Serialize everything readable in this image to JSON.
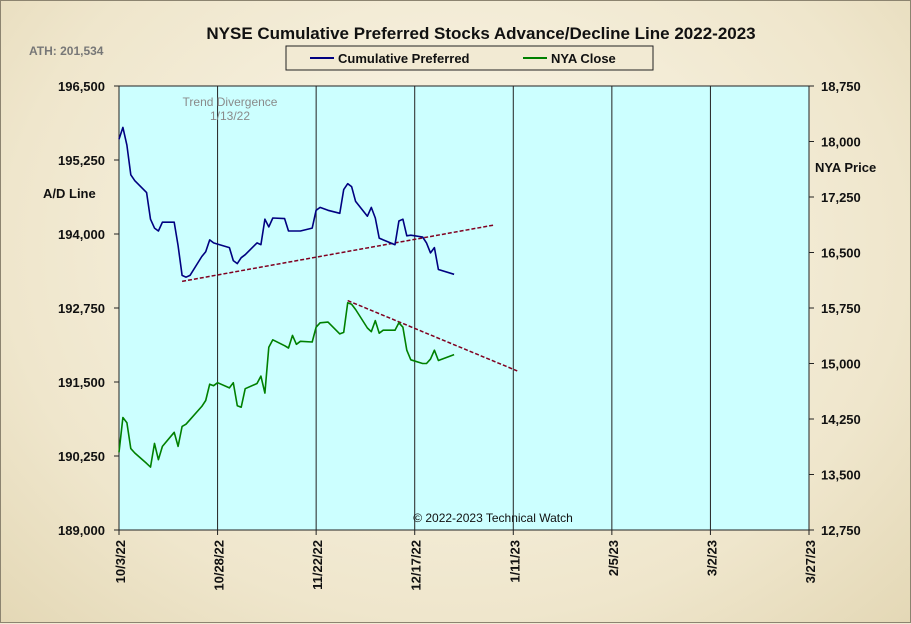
{
  "chart_data": {
    "type": "line",
    "title": "NYSE Cumulative  Preferred Stocks Advance/Decline  Line 2022-2023",
    "ath_label": "ATH: 201,534",
    "left_axis": {
      "label": "A/D Line",
      "range": [
        189000,
        196500
      ],
      "ticks": [
        "196,500",
        "195,250",
        "194,000",
        "192,750",
        "191,500",
        "190,250",
        "189,000"
      ],
      "tick_values": [
        196500,
        195250,
        194000,
        192750,
        191500,
        190250,
        189000
      ]
    },
    "right_axis": {
      "label": "NYA Price",
      "range": [
        12750,
        18750
      ],
      "ticks": [
        "18,750",
        "18,000",
        "17,250",
        "16,500",
        "15,750",
        "15,000",
        "14,250",
        "13,500",
        "12,750"
      ],
      "tick_values": [
        18750,
        18000,
        17250,
        16500,
        15750,
        15000,
        14250,
        13500,
        12750
      ]
    },
    "x_axis": {
      "range": [
        "2022-10-03",
        "2023-03-27"
      ],
      "tick_labels": [
        "10/3/22",
        "10/28/22",
        "11/22/22",
        "12/17/22",
        "1/11/23",
        "2/5/23",
        "3/2/23",
        "3/27/23"
      ],
      "tick_dates": [
        "2022-10-03",
        "2022-10-28",
        "2022-11-22",
        "2022-12-17",
        "2023-01-11",
        "2023-02-05",
        "2023-03-02",
        "2023-03-27"
      ]
    },
    "legend": {
      "position": "top-center",
      "entries": [
        {
          "name": "Cumulative Preferred",
          "color": "#000080"
        },
        {
          "name": "NYA Close",
          "color": "#008000"
        }
      ]
    },
    "annotation": {
      "line1": "Trend  Divergence",
      "line2": "1/13/22"
    },
    "copyright": "© 2022-2023  Technical  Watch",
    "colors": {
      "plot_bg": "#ccffff",
      "ad_line": "#000080",
      "nya_line": "#008000",
      "trendline": "#800020"
    },
    "series": [
      {
        "name": "Cumulative Preferred",
        "axis": "left",
        "color": "#000080",
        "x": [
          "2022-10-03",
          "2022-10-04",
          "2022-10-05",
          "2022-10-06",
          "2022-10-07",
          "2022-10-10",
          "2022-10-11",
          "2022-10-12",
          "2022-10-13",
          "2022-10-14",
          "2022-10-17",
          "2022-10-18",
          "2022-10-19",
          "2022-10-20",
          "2022-10-21",
          "2022-10-24",
          "2022-10-25",
          "2022-10-26",
          "2022-10-27",
          "2022-10-28",
          "2022-10-31",
          "2022-11-01",
          "2022-11-02",
          "2022-11-03",
          "2022-11-04",
          "2022-11-07",
          "2022-11-08",
          "2022-11-09",
          "2022-11-10",
          "2022-11-11",
          "2022-11-14",
          "2022-11-15",
          "2022-11-16",
          "2022-11-17",
          "2022-11-18",
          "2022-11-21",
          "2022-11-22",
          "2022-11-23",
          "2022-11-25",
          "2022-11-28",
          "2022-11-29",
          "2022-11-30",
          "2022-12-01",
          "2022-12-02",
          "2022-12-05",
          "2022-12-06",
          "2022-12-07",
          "2022-12-08",
          "2022-12-09",
          "2022-12-12",
          "2022-12-13",
          "2022-12-14",
          "2022-12-15",
          "2022-12-16",
          "2022-12-19",
          "2022-12-20",
          "2022-12-21",
          "2022-12-22",
          "2022-12-23",
          "2022-12-27",
          "2022-12-28",
          "2022-12-29",
          "2022-12-30"
        ],
        "values": [
          195600,
          195800,
          195500,
          195000,
          194900,
          194700,
          194250,
          194100,
          194050,
          194200,
          194200,
          193800,
          193300,
          193270,
          193300,
          193620,
          193700,
          193900,
          193850,
          193830,
          193770,
          193550,
          193500,
          193600,
          193650,
          193850,
          193820,
          194250,
          194120,
          194270,
          194260,
          194050,
          194050,
          194050,
          194050,
          194100,
          194400,
          194450,
          194400,
          194350,
          194750,
          194850,
          194800,
          194550,
          194300,
          194450,
          194270,
          193930,
          193900,
          193820,
          194220,
          194250,
          193970,
          193980,
          193950,
          193850,
          193680,
          193770,
          193400,
          193320,
          null,
          null,
          null
        ]
      },
      {
        "name": "NYA Close",
        "axis": "right",
        "color": "#008000",
        "x": [
          "2022-10-03",
          "2022-10-04",
          "2022-10-05",
          "2022-10-06",
          "2022-10-07",
          "2022-10-10",
          "2022-10-11",
          "2022-10-12",
          "2022-10-13",
          "2022-10-14",
          "2022-10-17",
          "2022-10-18",
          "2022-10-19",
          "2022-10-20",
          "2022-10-21",
          "2022-10-24",
          "2022-10-25",
          "2022-10-26",
          "2022-10-27",
          "2022-10-28",
          "2022-10-31",
          "2022-11-01",
          "2022-11-02",
          "2022-11-03",
          "2022-11-04",
          "2022-11-07",
          "2022-11-08",
          "2022-11-09",
          "2022-11-10",
          "2022-11-11",
          "2022-11-14",
          "2022-11-15",
          "2022-11-16",
          "2022-11-17",
          "2022-11-18",
          "2022-11-21",
          "2022-11-22",
          "2022-11-23",
          "2022-11-25",
          "2022-11-28",
          "2022-11-29",
          "2022-11-30",
          "2022-12-01",
          "2022-12-02",
          "2022-12-05",
          "2022-12-06",
          "2022-12-07",
          "2022-12-08",
          "2022-12-09",
          "2022-12-12",
          "2022-12-13",
          "2022-12-14",
          "2022-12-15",
          "2022-12-16",
          "2022-12-19",
          "2022-12-20",
          "2022-12-21",
          "2022-12-22",
          "2022-12-23",
          "2022-12-27",
          "2022-12-28",
          "2022-12-29",
          "2022-12-30"
        ],
        "values": [
          13800,
          14270,
          14200,
          13850,
          13790,
          13650,
          13600,
          13920,
          13700,
          13880,
          14070,
          13880,
          14150,
          14180,
          14240,
          14420,
          14500,
          14720,
          14700,
          14740,
          14670,
          14740,
          14430,
          14410,
          14660,
          14730,
          14830,
          14600,
          15220,
          15320,
          15240,
          15210,
          15380,
          15260,
          15300,
          15290,
          15490,
          15550,
          15560,
          15400,
          15420,
          15820,
          15800,
          15730,
          15480,
          15430,
          15580,
          15410,
          15450,
          15450,
          15550,
          15490,
          15180,
          15050,
          15000,
          15000,
          15060,
          15180,
          15040,
          15120,
          null,
          null,
          null
        ]
      }
    ],
    "trendlines": [
      {
        "name": "A/D trendline",
        "axis": "left",
        "from": {
          "x": "2022-10-19",
          "y": 193200
        },
        "to": {
          "x": "2023-01-06",
          "y": 194150
        }
      },
      {
        "name": "NYA trendline",
        "axis": "right",
        "from": {
          "x": "2022-11-30",
          "y": 15850
        },
        "to": {
          "x": "2023-01-12",
          "y": 14900
        }
      }
    ]
  }
}
